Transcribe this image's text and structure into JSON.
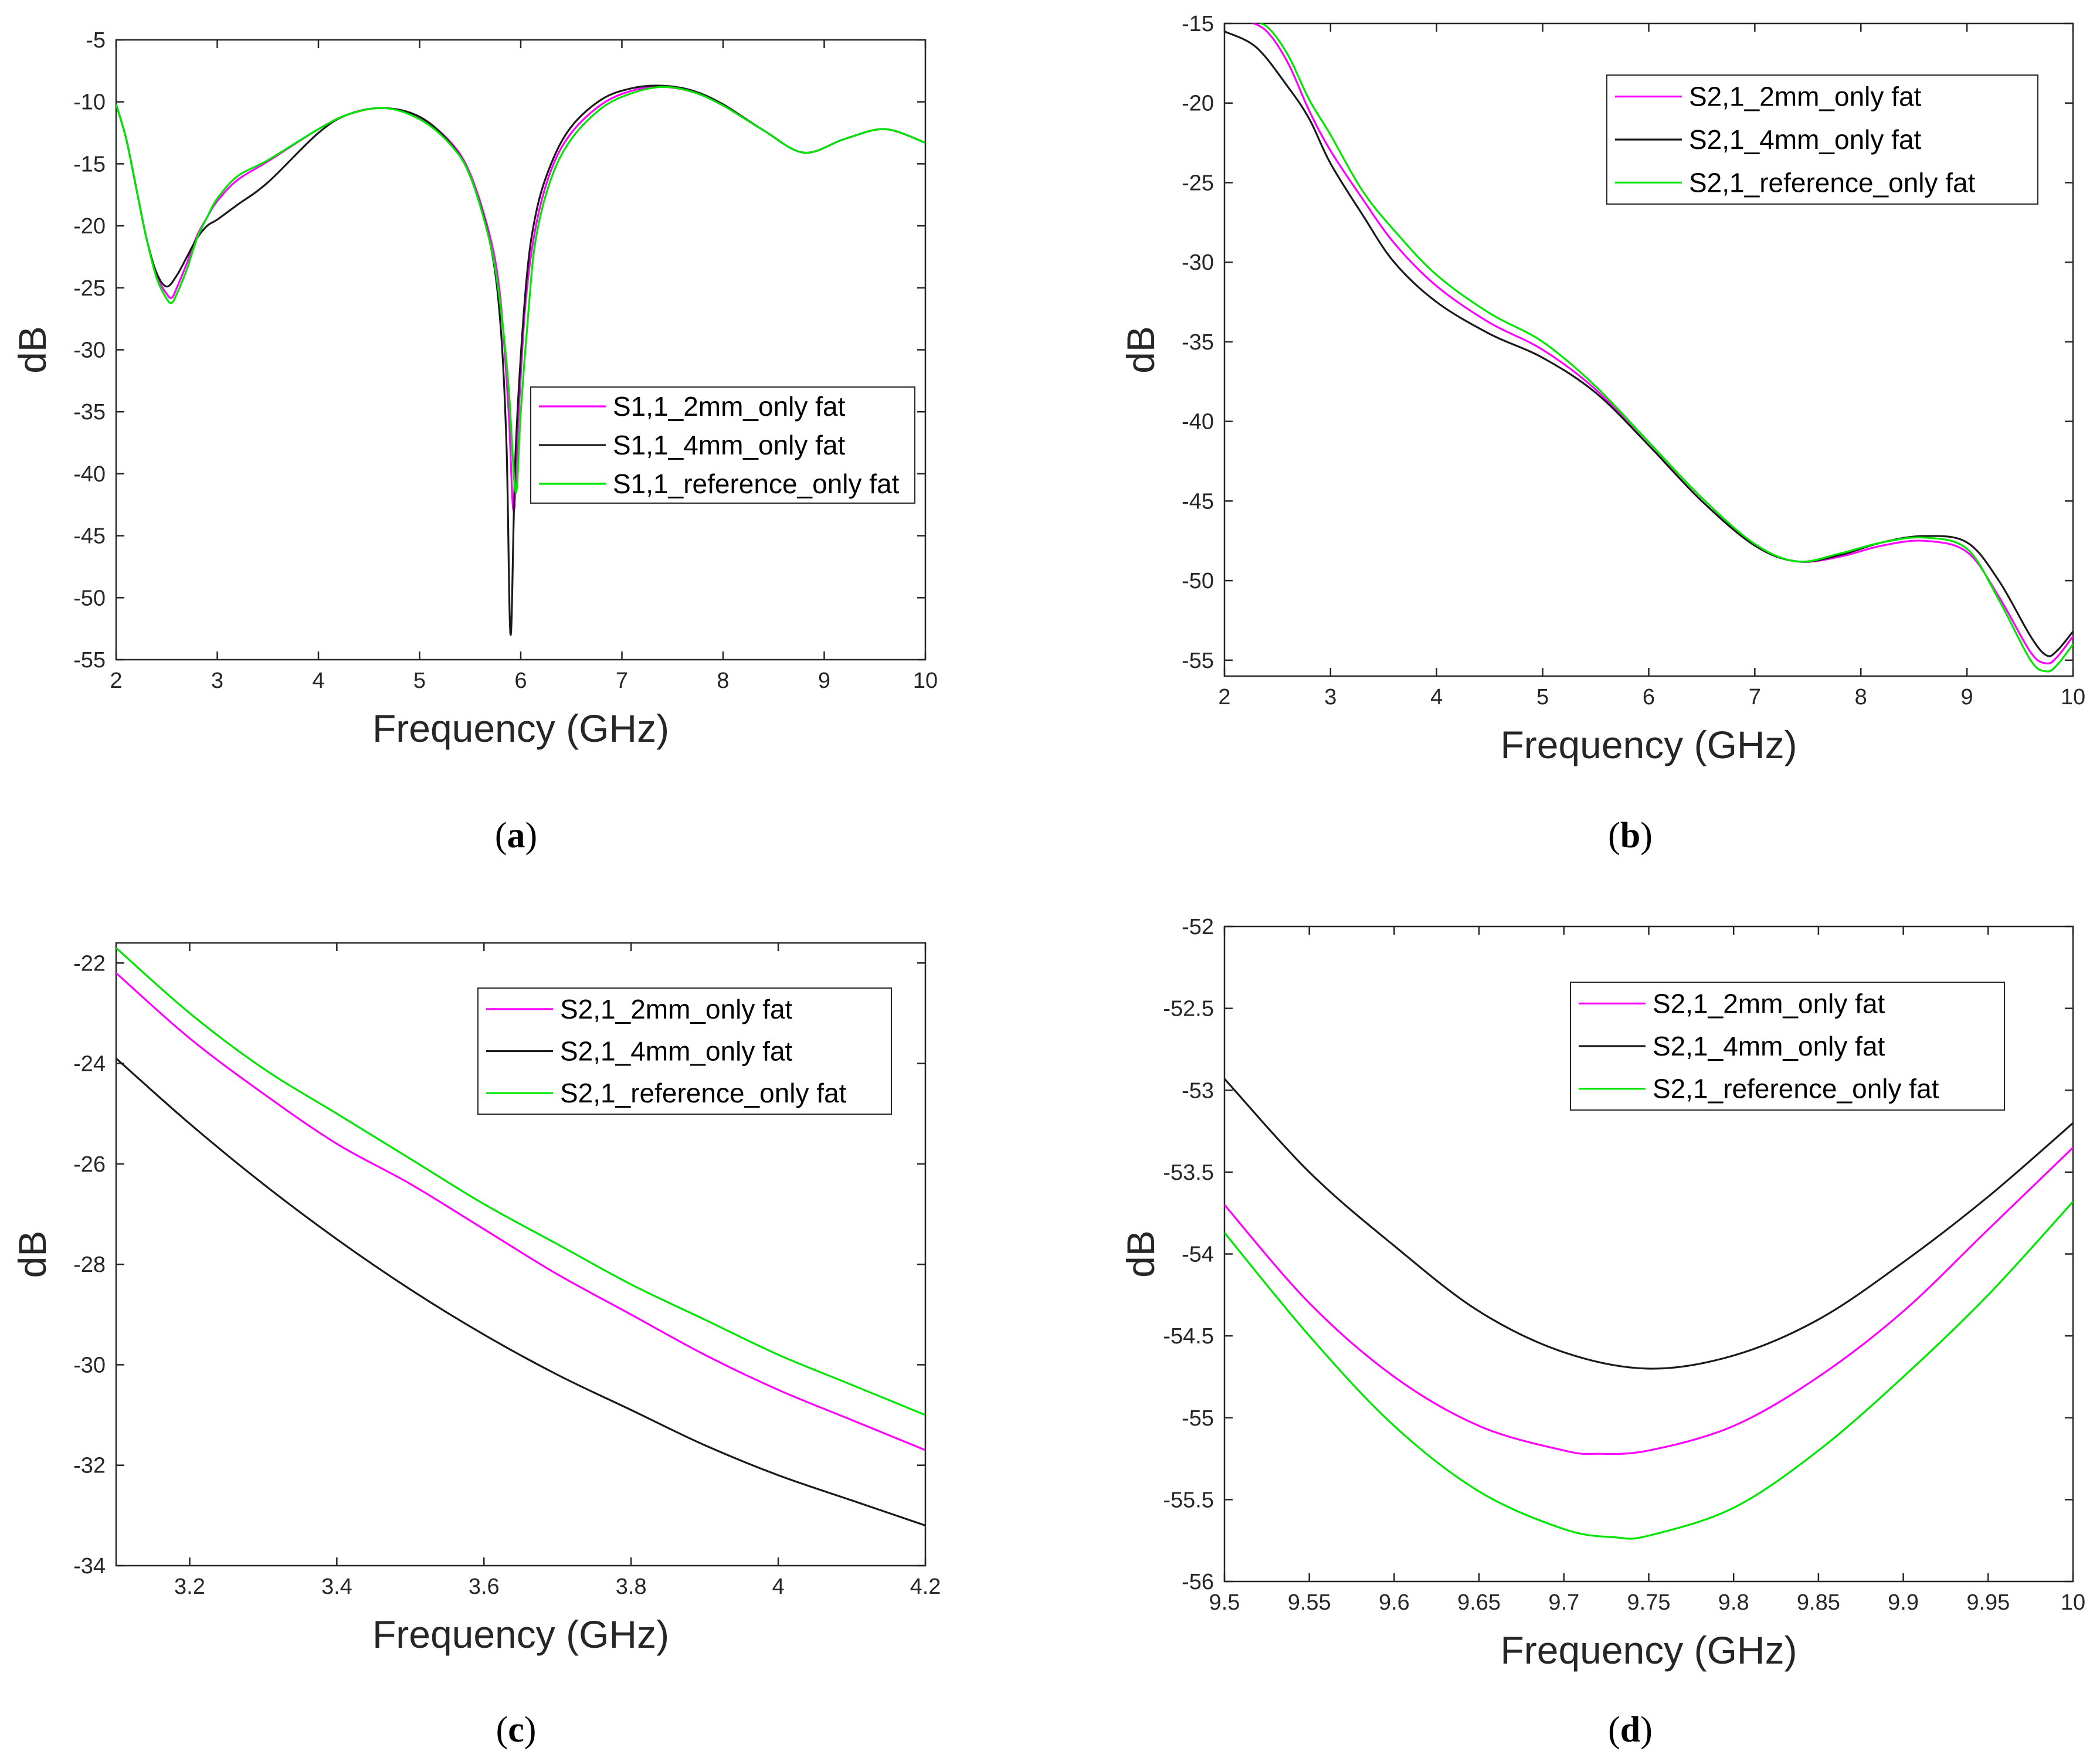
{
  "chart_data": [
    {
      "type": "line",
      "panel": "a",
      "caption": "(a)",
      "caption_letter": "a",
      "xlabel": "Frequency (GHz)",
      "ylabel": "dB",
      "xlim": [
        2,
        10
      ],
      "ylim": [
        -55,
        -5
      ],
      "xticks": [
        2,
        3,
        4,
        5,
        6,
        7,
        8,
        9,
        10
      ],
      "yticks": [
        -55,
        -50,
        -45,
        -40,
        -35,
        -30,
        -25,
        -20,
        -15,
        -10,
        -5
      ],
      "legend_position": "center-right",
      "series": [
        {
          "name": "S1,1_2mm_only fat",
          "color": "#ff00ff",
          "x": [
            2.0,
            2.1,
            2.2,
            2.3,
            2.4,
            2.5,
            2.55,
            2.6,
            2.7,
            2.8,
            2.9,
            3.0,
            3.2,
            3.5,
            4.0,
            4.3,
            4.65,
            5.0,
            5.3,
            5.5,
            5.7,
            5.8,
            5.88,
            5.93,
            5.98,
            6.05,
            6.15,
            6.3,
            6.5,
            6.8,
            7.1,
            7.4,
            7.7,
            8.0,
            8.4,
            8.8,
            9.2,
            9.6,
            10.0
          ],
          "y": [
            -10.2,
            -13.0,
            -17.0,
            -21.0,
            -24.0,
            -25.5,
            -25.8,
            -25.0,
            -23.0,
            -20.8,
            -19.3,
            -18.0,
            -16.3,
            -14.8,
            -12.2,
            -11.0,
            -10.5,
            -11.3,
            -13.2,
            -15.8,
            -21.0,
            -26.0,
            -35.0,
            -43.0,
            -35.0,
            -26.0,
            -20.0,
            -15.5,
            -12.5,
            -10.2,
            -9.1,
            -8.8,
            -9.2,
            -10.3,
            -12.3,
            -14.1,
            -13.0,
            -12.2,
            -13.3
          ]
        },
        {
          "name": "S1,1_4mm_only fat",
          "color": "#1a1a1a",
          "x": [
            2.0,
            2.1,
            2.2,
            2.3,
            2.4,
            2.5,
            2.6,
            2.7,
            2.8,
            2.9,
            3.0,
            3.2,
            3.5,
            4.0,
            4.3,
            4.65,
            5.0,
            5.3,
            5.5,
            5.7,
            5.8,
            5.86,
            5.9,
            5.95,
            6.05,
            6.15,
            6.3,
            6.5,
            6.8,
            7.1,
            7.4,
            7.7,
            8.0,
            8.4,
            8.8,
            9.2,
            9.6,
            10.0
          ],
          "y": [
            -10.2,
            -13.0,
            -17.0,
            -21.0,
            -23.8,
            -24.9,
            -24.0,
            -22.5,
            -21.0,
            -20.0,
            -19.5,
            -18.3,
            -16.5,
            -12.5,
            -11.0,
            -10.5,
            -11.2,
            -13.3,
            -16.0,
            -21.5,
            -28.0,
            -38.0,
            -53.0,
            -38.0,
            -25.0,
            -19.0,
            -15.0,
            -12.0,
            -9.8,
            -8.9,
            -8.7,
            -9.1,
            -10.2,
            -12.3,
            -14.1,
            -13.0,
            -12.2,
            -13.3
          ]
        },
        {
          "name": "S1,1_reference_only fat",
          "color": "#00e600",
          "x": [
            2.0,
            2.1,
            2.2,
            2.3,
            2.4,
            2.5,
            2.55,
            2.6,
            2.7,
            2.8,
            2.9,
            3.0,
            3.2,
            3.5,
            4.0,
            4.3,
            4.65,
            5.0,
            5.3,
            5.5,
            5.7,
            5.8,
            5.88,
            5.95,
            6.0,
            6.08,
            6.15,
            6.3,
            6.5,
            6.8,
            7.1,
            7.4,
            7.7,
            8.0,
            8.4,
            8.8,
            9.2,
            9.6,
            10.0
          ],
          "y": [
            -10.2,
            -13.0,
            -17.0,
            -21.0,
            -24.2,
            -25.9,
            -26.2,
            -25.5,
            -23.5,
            -21.0,
            -19.3,
            -17.8,
            -16.0,
            -14.7,
            -12.2,
            -11.0,
            -10.5,
            -11.4,
            -13.4,
            -16.0,
            -21.5,
            -26.5,
            -33.0,
            -41.5,
            -35.0,
            -26.5,
            -21.0,
            -16.2,
            -13.0,
            -10.5,
            -9.3,
            -8.8,
            -9.2,
            -10.3,
            -12.3,
            -14.1,
            -13.0,
            -12.2,
            -13.3
          ]
        }
      ],
      "legend_entries": [
        "S1,1_2mm_only fat",
        "S1,1_4mm_only fat",
        "S1,1_reference_only fat"
      ]
    },
    {
      "type": "line",
      "panel": "b",
      "caption": "(b)",
      "caption_letter": "b",
      "xlabel": "Frequency (GHz)",
      "ylabel": "dB",
      "xlim": [
        2,
        10
      ],
      "ylim": [
        -56,
        -15
      ],
      "xticks": [
        2,
        3,
        4,
        5,
        6,
        7,
        8,
        9,
        10
      ],
      "yticks": [
        -55,
        -50,
        -45,
        -40,
        -35,
        -30,
        -25,
        -20,
        -15
      ],
      "legend_position": "top-right",
      "series": [
        {
          "name": "S2,1_2mm_only fat",
          "color": "#ff00ff",
          "x": [
            2.2,
            2.4,
            2.6,
            2.8,
            3.0,
            3.3,
            3.6,
            4.0,
            4.5,
            5.0,
            5.5,
            6.0,
            6.5,
            7.0,
            7.4,
            7.8,
            8.2,
            8.6,
            9.0,
            9.3,
            9.6,
            9.75,
            9.85,
            10.0
          ],
          "y": [
            -14.8,
            -15.5,
            -17.5,
            -20.5,
            -23.0,
            -26.0,
            -28.8,
            -31.5,
            -33.8,
            -35.5,
            -38.0,
            -41.5,
            -45.0,
            -47.8,
            -48.8,
            -48.5,
            -47.8,
            -47.5,
            -48.2,
            -51.0,
            -54.5,
            -55.2,
            -54.8,
            -53.5
          ]
        },
        {
          "name": "S2,1_4mm_only fat",
          "color": "#1a1a1a",
          "x": [
            2.0,
            2.3,
            2.6,
            2.8,
            3.0,
            3.3,
            3.6,
            4.0,
            4.5,
            5.0,
            5.5,
            6.0,
            6.5,
            7.0,
            7.4,
            7.8,
            8.2,
            8.6,
            9.0,
            9.3,
            9.6,
            9.75,
            9.85,
            10.0
          ],
          "y": [
            -15.5,
            -16.5,
            -19.0,
            -21.0,
            -23.8,
            -27.0,
            -30.0,
            -32.5,
            -34.5,
            -36.0,
            -38.2,
            -41.5,
            -45.0,
            -47.8,
            -48.8,
            -48.4,
            -47.6,
            -47.2,
            -47.6,
            -50.0,
            -53.5,
            -54.7,
            -54.4,
            -53.2
          ]
        },
        {
          "name": "S2,1_reference_only fat",
          "color": "#00e600",
          "x": [
            2.2,
            2.4,
            2.6,
            2.8,
            3.0,
            3.3,
            3.6,
            4.0,
            4.5,
            5.0,
            5.5,
            6.0,
            6.5,
            7.0,
            7.4,
            7.8,
            8.2,
            8.6,
            9.0,
            9.3,
            9.6,
            9.75,
            9.85,
            10.0
          ],
          "y": [
            -14.8,
            -15.2,
            -17.0,
            -19.8,
            -22.0,
            -25.5,
            -28.0,
            -30.8,
            -33.2,
            -35.0,
            -37.8,
            -41.3,
            -44.8,
            -47.7,
            -48.8,
            -48.3,
            -47.6,
            -47.3,
            -48.0,
            -51.2,
            -55.0,
            -55.7,
            -55.3,
            -54.0
          ]
        }
      ],
      "legend_entries": [
        "S2,1_2mm_only fat",
        "S2,1_4mm_only fat",
        "S2,1_reference_only fat"
      ]
    },
    {
      "type": "line",
      "panel": "c",
      "caption": "(c)",
      "caption_letter": "c",
      "xlabel": "Frequency (GHz)",
      "ylabel": "dB",
      "xlim": [
        3.1,
        4.2
      ],
      "ylim": [
        -34,
        -21.6
      ],
      "xticks": [
        3.2,
        3.4,
        3.6,
        3.8,
        4,
        4.2
      ],
      "xtick_labels": [
        "3.2",
        "3.4",
        "3.6",
        "3.8",
        "4",
        "4.2"
      ],
      "yticks": [
        -34,
        -32,
        -30,
        -28,
        -26,
        -24,
        -22
      ],
      "legend_position": "top-right",
      "series": [
        {
          "name": "S2,1_2mm_only fat",
          "color": "#ff00ff",
          "x": [
            3.1,
            3.2,
            3.3,
            3.4,
            3.5,
            3.6,
            3.7,
            3.8,
            3.9,
            4.0,
            4.1,
            4.2
          ],
          "y": [
            -22.2,
            -23.5,
            -24.6,
            -25.6,
            -26.4,
            -27.3,
            -28.2,
            -29.0,
            -29.8,
            -30.5,
            -31.1,
            -31.7
          ]
        },
        {
          "name": "S2,1_4mm_only fat",
          "color": "#1a1a1a",
          "x": [
            3.1,
            3.2,
            3.3,
            3.4,
            3.5,
            3.6,
            3.7,
            3.8,
            3.9,
            4.0,
            4.1,
            4.2
          ],
          "y": [
            -23.9,
            -25.2,
            -26.4,
            -27.5,
            -28.5,
            -29.4,
            -30.2,
            -30.9,
            -31.6,
            -32.2,
            -32.7,
            -33.2
          ]
        },
        {
          "name": "S2,1_reference_only fat",
          "color": "#00e600",
          "x": [
            3.1,
            3.2,
            3.3,
            3.4,
            3.5,
            3.6,
            3.7,
            3.8,
            3.9,
            4.0,
            4.1,
            4.2
          ],
          "y": [
            -21.7,
            -23.0,
            -24.1,
            -25.0,
            -25.9,
            -26.8,
            -27.6,
            -28.4,
            -29.1,
            -29.8,
            -30.4,
            -31.0
          ]
        }
      ],
      "legend_entries": [
        "S2,1_2mm_only fat",
        "S2,1_4mm_only fat",
        "S2,1_reference_only fat"
      ]
    },
    {
      "type": "line",
      "panel": "d",
      "caption": "(d)",
      "caption_letter": "d",
      "xlabel": "Frequency (GHz)",
      "ylabel": "dB",
      "xlim": [
        9.5,
        10
      ],
      "ylim": [
        -56,
        -52
      ],
      "xticks": [
        9.5,
        9.55,
        9.6,
        9.65,
        9.7,
        9.75,
        9.8,
        9.85,
        9.9,
        9.95,
        10
      ],
      "xtick_labels": [
        "9.5",
        "9.55",
        "9.6",
        "9.65",
        "9.7",
        "9.75",
        "9.8",
        "9.85",
        "9.9",
        "9.95",
        "10"
      ],
      "yticks": [
        -56,
        -55.5,
        -55,
        -54.5,
        -54,
        -53.5,
        -53,
        -52.5,
        -52
      ],
      "legend_position": "top-right",
      "series": [
        {
          "name": "S2,1_2mm_only fat",
          "color": "#ff00ff",
          "x": [
            9.5,
            9.55,
            9.6,
            9.65,
            9.7,
            9.72,
            9.75,
            9.8,
            9.85,
            9.9,
            9.95,
            10.0
          ],
          "y": [
            -53.7,
            -54.3,
            -54.75,
            -55.05,
            -55.2,
            -55.22,
            -55.2,
            -55.05,
            -54.75,
            -54.35,
            -53.85,
            -53.35
          ]
        },
        {
          "name": "S2,1_4mm_only fat",
          "color": "#1a1a1a",
          "x": [
            9.5,
            9.55,
            9.6,
            9.65,
            9.7,
            9.75,
            9.8,
            9.85,
            9.9,
            9.95,
            10.0
          ],
          "y": [
            -52.93,
            -53.5,
            -53.95,
            -54.35,
            -54.6,
            -54.7,
            -54.62,
            -54.4,
            -54.05,
            -53.65,
            -53.2
          ]
        },
        {
          "name": "S2,1_reference_only fat",
          "color": "#00e600",
          "x": [
            9.5,
            9.55,
            9.6,
            9.65,
            9.7,
            9.73,
            9.75,
            9.8,
            9.85,
            9.9,
            9.95,
            10.0
          ],
          "y": [
            -53.87,
            -54.5,
            -55.05,
            -55.45,
            -55.68,
            -55.73,
            -55.72,
            -55.55,
            -55.2,
            -54.75,
            -54.25,
            -53.68
          ]
        }
      ],
      "legend_entries": [
        "S2,1_2mm_only fat",
        "S2,1_4mm_only fat",
        "S2,1_reference_only fat"
      ]
    }
  ]
}
